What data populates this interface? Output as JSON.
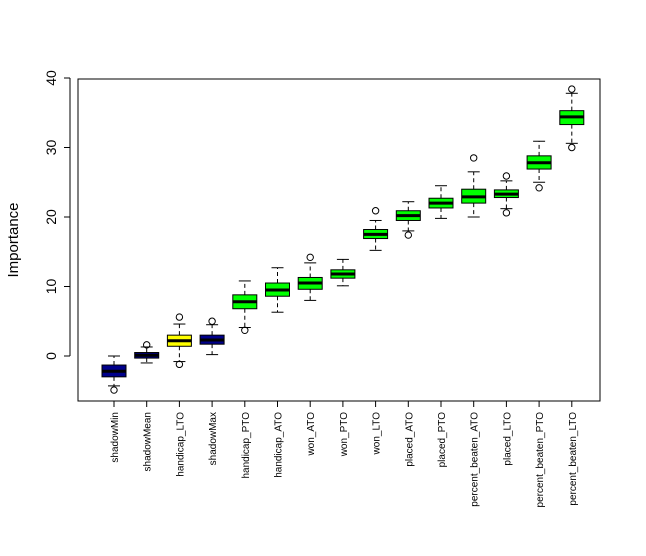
{
  "chart_data": {
    "type": "boxplot",
    "title": "",
    "xlabel": "",
    "ylabel": "Importance",
    "ylim": [
      -7,
      40
    ],
    "yticks": [
      0,
      10,
      20,
      30,
      40
    ],
    "grid": false,
    "legend": "none",
    "categories": [
      "shadowMin",
      "shadowMean",
      "handicap_LTO",
      "shadowMax",
      "handicap_PTO",
      "handicap_ATO",
      "won_ATO",
      "won_PTO",
      "won_LTO",
      "placed_ATO",
      "placed_PTO",
      "percent_beaten_ATO",
      "placed_LTO",
      "percent_beaten_PTO",
      "percent_beaten_LTO"
    ],
    "boxes": [
      {
        "min": -4.3,
        "q1": -3.0,
        "median": -2.2,
        "q3": -1.3,
        "max": 0.0,
        "outliers": [
          -4.9
        ],
        "color": "#00008b"
      },
      {
        "min": -1.0,
        "q1": -0.3,
        "median": 0.1,
        "q3": 0.5,
        "max": 1.3,
        "outliers": [
          1.6
        ],
        "color": "#00008b"
      },
      {
        "min": -0.8,
        "q1": 1.4,
        "median": 2.2,
        "q3": 3.0,
        "max": 4.6,
        "outliers": [
          5.6,
          -1.2
        ],
        "color": "#ffff00"
      },
      {
        "min": 0.2,
        "q1": 1.7,
        "median": 2.3,
        "q3": 3.0,
        "max": 4.5,
        "outliers": [
          5.0
        ],
        "color": "#00008b"
      },
      {
        "min": 4.1,
        "q1": 6.8,
        "median": 7.8,
        "q3": 8.8,
        "max": 10.8,
        "outliers": [
          3.7
        ],
        "color": "#00ff00"
      },
      {
        "min": 6.3,
        "q1": 8.6,
        "median": 9.5,
        "q3": 10.5,
        "max": 12.7,
        "outliers": [],
        "color": "#00ff00"
      },
      {
        "min": 8.0,
        "q1": 9.6,
        "median": 10.5,
        "q3": 11.3,
        "max": 13.4,
        "outliers": [
          14.2
        ],
        "color": "#00ff00"
      },
      {
        "min": 10.1,
        "q1": 11.2,
        "median": 11.8,
        "q3": 12.4,
        "max": 13.9,
        "outliers": [],
        "color": "#00ff00"
      },
      {
        "min": 15.2,
        "q1": 16.9,
        "median": 17.5,
        "q3": 18.2,
        "max": 19.5,
        "outliers": [
          20.9
        ],
        "color": "#00ff00"
      },
      {
        "min": 18.0,
        "q1": 19.5,
        "median": 20.2,
        "q3": 20.9,
        "max": 22.2,
        "outliers": [
          17.4
        ],
        "color": "#00ff00"
      },
      {
        "min": 19.8,
        "q1": 21.3,
        "median": 22.0,
        "q3": 22.7,
        "max": 24.5,
        "outliers": [],
        "color": "#00ff00"
      },
      {
        "min": 20.0,
        "q1": 22.0,
        "median": 22.9,
        "q3": 24.0,
        "max": 26.5,
        "outliers": [
          28.5
        ],
        "color": "#00ff00"
      },
      {
        "min": 21.2,
        "q1": 22.8,
        "median": 23.3,
        "q3": 23.9,
        "max": 25.2,
        "outliers": [
          25.9,
          20.6
        ],
        "color": "#00ff00"
      },
      {
        "min": 25.0,
        "q1": 26.9,
        "median": 27.8,
        "q3": 28.8,
        "max": 30.9,
        "outliers": [
          24.2
        ],
        "color": "#00ff00"
      },
      {
        "min": 30.6,
        "q1": 33.3,
        "median": 34.4,
        "q3": 35.3,
        "max": 37.8,
        "outliers": [
          38.4,
          30.0
        ],
        "color": "#00ff00"
      }
    ]
  }
}
